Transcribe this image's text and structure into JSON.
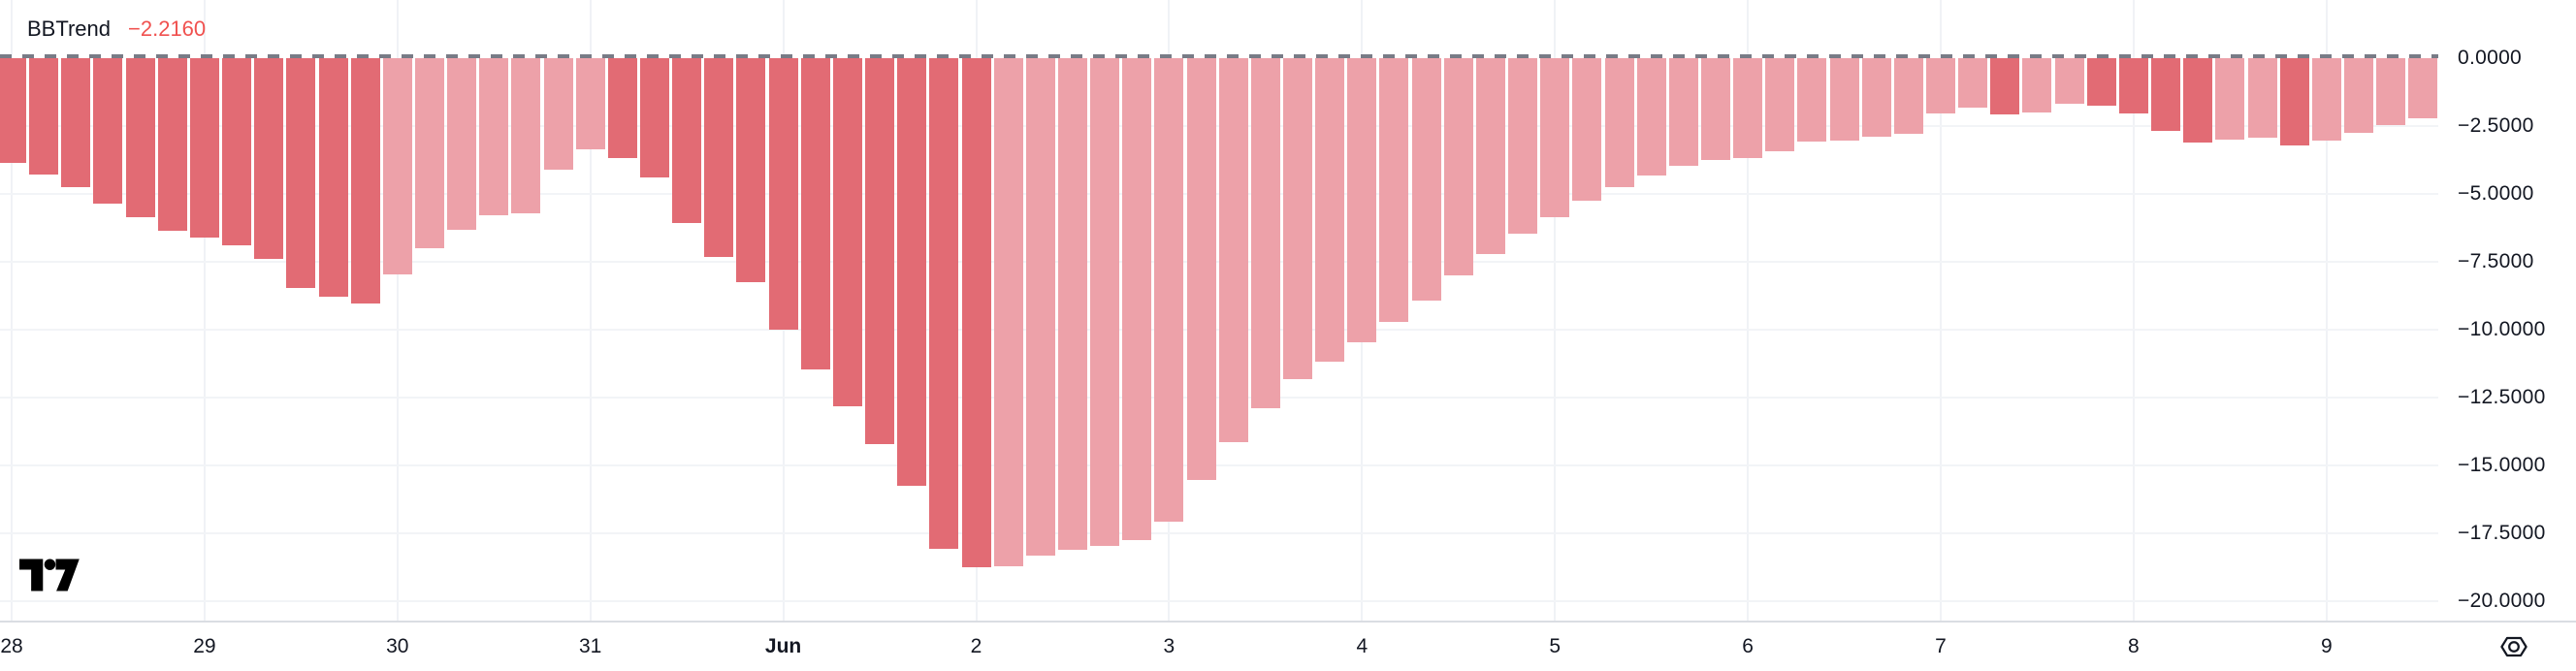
{
  "legend": {
    "title": "BBTrend",
    "value": "−2.2160"
  },
  "colors": {
    "background": "#FFFFFF",
    "text": "#131722",
    "legend_value": "#F0514F",
    "grid": "#F0F2F6",
    "zero_line": "#787B86",
    "axis_border": "#DADDE3",
    "bar_falling": "#E26B74",
    "bar_rising": "#EDA1A9",
    "logo": "#000000"
  },
  "chart_data": {
    "type": "bar",
    "title": "BBTrend",
    "subtitle": "",
    "xlabel": "",
    "ylabel": "",
    "current_value": -2.216,
    "ylim": [
      -20.7,
      2.1
    ],
    "y_tick_step": 2.5,
    "grid": true,
    "legend_position": "top-left",
    "bar_interval": "4h",
    "y_ticks": [
      {
        "text": "0.0000",
        "value": 0
      },
      {
        "text": "−2.5000",
        "value": -2.5
      },
      {
        "text": "−5.0000",
        "value": -5
      },
      {
        "text": "−7.5000",
        "value": -7.5
      },
      {
        "text": "−10.0000",
        "value": -10
      },
      {
        "text": "−12.5000",
        "value": -12.5
      },
      {
        "text": "−15.0000",
        "value": -15
      },
      {
        "text": "−17.5000",
        "value": -17.5
      },
      {
        "text": "−20.0000",
        "value": -20
      }
    ],
    "x_labels": [
      {
        "text": "28",
        "bar": 0,
        "bold": false
      },
      {
        "text": "29",
        "bar": 6,
        "bold": false
      },
      {
        "text": "30",
        "bar": 12,
        "bold": false
      },
      {
        "text": "31",
        "bar": 18,
        "bold": false
      },
      {
        "text": "Jun",
        "bar": 24,
        "bold": true
      },
      {
        "text": "2",
        "bar": 30,
        "bold": false
      },
      {
        "text": "3",
        "bar": 36,
        "bold": false
      },
      {
        "text": "4",
        "bar": 42,
        "bold": false
      },
      {
        "text": "5",
        "bar": 48,
        "bold": false
      },
      {
        "text": "6",
        "bar": 54,
        "bold": false
      },
      {
        "text": "7",
        "bar": 60,
        "bold": false
      },
      {
        "text": "8",
        "bar": 66,
        "bold": false
      },
      {
        "text": "9",
        "bar": 72,
        "bold": false
      }
    ],
    "values": [
      -3.86,
      -4.3,
      -4.75,
      -5.36,
      -5.86,
      -6.36,
      -6.6,
      -6.9,
      -7.4,
      -8.45,
      -8.8,
      -9.05,
      -7.95,
      -7.0,
      -6.32,
      -5.8,
      -5.7,
      -4.11,
      -3.36,
      -3.68,
      -4.39,
      -6.07,
      -7.32,
      -8.25,
      -10.0,
      -11.46,
      -12.82,
      -14.21,
      -15.75,
      -18.07,
      -18.75,
      -18.7,
      -18.32,
      -18.11,
      -17.96,
      -17.75,
      -17.07,
      -15.54,
      -14.14,
      -12.89,
      -11.82,
      -11.18,
      -10.46,
      -9.71,
      -8.93,
      -8.0,
      -7.23,
      -6.47,
      -5.85,
      -5.26,
      -4.74,
      -4.32,
      -3.97,
      -3.76,
      -3.68,
      -3.44,
      -3.08,
      -3.05,
      -2.88,
      -2.79,
      -2.05,
      -1.83,
      -2.07,
      -2.01,
      -1.69,
      -1.74,
      -2.05,
      -2.69,
      -3.12,
      -3.0,
      -2.93,
      -3.21,
      -3.03,
      -2.75,
      -2.46,
      -2.216
    ],
    "tones": "ddddddddddddllllllldddddddddddd lllllllllllllllllllllllllllllll dlldddd lldllll",
    "tone_legend": {
      "d": "falling (darker red)",
      "l": "rising (lighter pink)"
    }
  },
  "time_axis": {
    "settings_icon": "price-scale-settings"
  },
  "branding": {
    "logo": "tradingview-logo"
  }
}
